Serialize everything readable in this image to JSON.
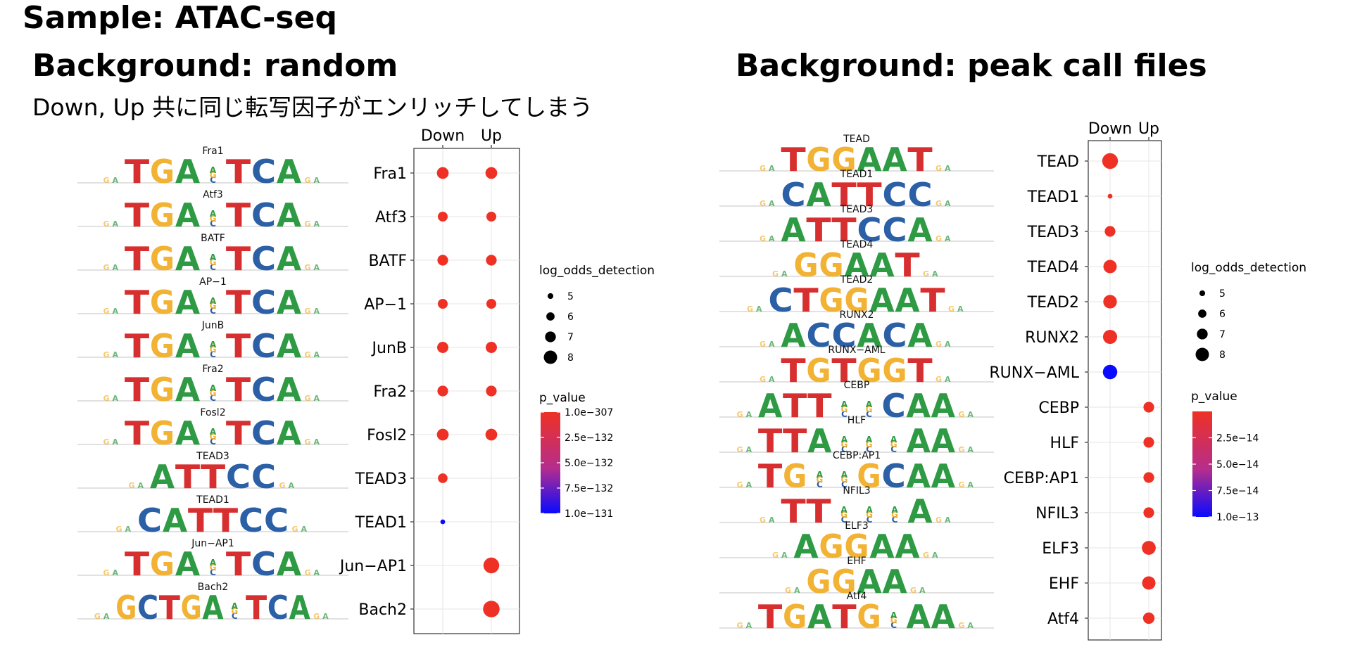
{
  "page": {
    "sample_title": "Sample: ATAC-seq",
    "left_background_title": "Background: random",
    "left_note": "Down, Up 共に同じ転写因子がエンリッチしてしまう",
    "right_background_title": "Background: peak call files"
  },
  "chart_data": [
    {
      "type": "scatter",
      "title": "",
      "x_categories": [
        "Down",
        "Up"
      ],
      "y_categories": [
        "Fra1",
        "Atf3",
        "BATF",
        "AP−1",
        "JunB",
        "Fra2",
        "Fosl2",
        "TEAD3",
        "TEAD1",
        "Jun−AP1",
        "Bach2"
      ],
      "grid": true,
      "legend_position": "right",
      "size_legend": {
        "title": "log_odds_detection",
        "values": [
          5,
          6,
          7,
          8
        ],
        "labels": [
          "5",
          "6",
          "7",
          "8"
        ]
      },
      "color_legend": {
        "title": "p_value",
        "labels": [
          "1.0e−307",
          "2.5e−132",
          "5.0e−132",
          "7.5e−132",
          "1.0e−131"
        ],
        "low_color": "#ee3124",
        "high_color": "#0a0aff"
      },
      "points": [
        {
          "motif": "Fra1",
          "group": "Down",
          "size": 7.0,
          "color_frac": 0
        },
        {
          "motif": "Fra1",
          "group": "Up",
          "size": 7.0,
          "color_frac": 0
        },
        {
          "motif": "Atf3",
          "group": "Down",
          "size": 6.3,
          "color_frac": 0
        },
        {
          "motif": "Atf3",
          "group": "Up",
          "size": 6.3,
          "color_frac": 0
        },
        {
          "motif": "BATF",
          "group": "Down",
          "size": 6.6,
          "color_frac": 0
        },
        {
          "motif": "BATF",
          "group": "Up",
          "size": 6.6,
          "color_frac": 0
        },
        {
          "motif": "AP−1",
          "group": "Down",
          "size": 6.3,
          "color_frac": 0
        },
        {
          "motif": "AP−1",
          "group": "Up",
          "size": 6.3,
          "color_frac": 0
        },
        {
          "motif": "JunB",
          "group": "Down",
          "size": 6.8,
          "color_frac": 0
        },
        {
          "motif": "JunB",
          "group": "Up",
          "size": 6.8,
          "color_frac": 0
        },
        {
          "motif": "Fra2",
          "group": "Down",
          "size": 6.6,
          "color_frac": 0
        },
        {
          "motif": "Fra2",
          "group": "Up",
          "size": 6.6,
          "color_frac": 0
        },
        {
          "motif": "Fosl2",
          "group": "Down",
          "size": 7.0,
          "color_frac": 0
        },
        {
          "motif": "Fosl2",
          "group": "Up",
          "size": 7.0,
          "color_frac": 0
        },
        {
          "motif": "TEAD3",
          "group": "Down",
          "size": 6.2,
          "color_frac": 0
        },
        {
          "motif": "TEAD1",
          "group": "Down",
          "size": 4.4,
          "color_frac": 1
        },
        {
          "motif": "Jun−AP1",
          "group": "Up",
          "size": 8.5,
          "color_frac": 0
        },
        {
          "motif": "Bach2",
          "group": "Up",
          "size": 8.8,
          "color_frac": 0
        }
      ]
    },
    {
      "type": "scatter",
      "title": "",
      "x_categories": [
        "Down",
        "Up"
      ],
      "y_categories": [
        "TEAD",
        "TEAD1",
        "TEAD3",
        "TEAD4",
        "TEAD2",
        "RUNX2",
        "RUNX−AML",
        "CEBP",
        "HLF",
        "CEBP:AP1",
        "NFIL3",
        "ELF3",
        "EHF",
        "Atf4"
      ],
      "grid": true,
      "legend_position": "right",
      "size_legend": {
        "title": "log_odds_detection",
        "values": [
          5,
          6,
          7,
          8
        ],
        "labels": [
          "5",
          "6",
          "7",
          "8"
        ]
      },
      "color_legend": {
        "title": "p_value",
        "labels": [
          "2.5e−14",
          "5.0e−14",
          "7.5e−14",
          "1.0e−13"
        ],
        "low_color": "#ee3124",
        "high_color": "#0a0aff"
      },
      "points": [
        {
          "motif": "TEAD",
          "group": "Down",
          "size": 8.5,
          "color_frac": 0
        },
        {
          "motif": "TEAD1",
          "group": "Down",
          "size": 4.4,
          "color_frac": 0
        },
        {
          "motif": "TEAD3",
          "group": "Down",
          "size": 6.6,
          "color_frac": 0
        },
        {
          "motif": "TEAD4",
          "group": "Down",
          "size": 7.6,
          "color_frac": 0
        },
        {
          "motif": "TEAD2",
          "group": "Down",
          "size": 7.7,
          "color_frac": 0
        },
        {
          "motif": "RUNX2",
          "group": "Down",
          "size": 7.9,
          "color_frac": 0
        },
        {
          "motif": "RUNX−AML",
          "group": "Down",
          "size": 8.0,
          "color_frac": 1
        },
        {
          "motif": "CEBP",
          "group": "Up",
          "size": 6.6,
          "color_frac": 0
        },
        {
          "motif": "HLF",
          "group": "Up",
          "size": 6.6,
          "color_frac": 0
        },
        {
          "motif": "CEBP:AP1",
          "group": "Up",
          "size": 6.6,
          "color_frac": 0
        },
        {
          "motif": "NFIL3",
          "group": "Up",
          "size": 6.6,
          "color_frac": 0
        },
        {
          "motif": "ELF3",
          "group": "Up",
          "size": 7.8,
          "color_frac": 0
        },
        {
          "motif": "EHF",
          "group": "Up",
          "size": 7.6,
          "color_frac": 0
        },
        {
          "motif": "Atf4",
          "group": "Up",
          "size": 6.9,
          "color_frac": 0
        }
      ]
    }
  ],
  "motif_logos": [
    {
      "panel": "left",
      "items": [
        {
          "name": "Fra1",
          "seq": "TGA.TCA"
        },
        {
          "name": "Atf3",
          "seq": "TGA.TCA"
        },
        {
          "name": "BATF",
          "seq": "TGA.TCA"
        },
        {
          "name": "AP−1",
          "seq": "TGA.TCA"
        },
        {
          "name": "JunB",
          "seq": "TGA.TCA"
        },
        {
          "name": "Fra2",
          "seq": "TGA.TCA"
        },
        {
          "name": "Fosl2",
          "seq": "TGA.TCA"
        },
        {
          "name": "TEAD3",
          "seq": "ATTCC"
        },
        {
          "name": "TEAD1",
          "seq": "CATTCC"
        },
        {
          "name": "Jun−AP1",
          "seq": "TGA.TCA"
        },
        {
          "name": "Bach2",
          "seq": "GCTGA.TCA"
        }
      ]
    },
    {
      "panel": "right",
      "items": [
        {
          "name": "TEAD",
          "seq": "TGGAAT"
        },
        {
          "name": "TEAD1",
          "seq": "CATTCC"
        },
        {
          "name": "TEAD3",
          "seq": "ATTCCA"
        },
        {
          "name": "TEAD4",
          "seq": "GGAAT"
        },
        {
          "name": "TEAD2",
          "seq": "CTGGAAT"
        },
        {
          "name": "RUNX2",
          "seq": "ACCACA"
        },
        {
          "name": "RUNX−AML",
          "seq": "TGTGGT"
        },
        {
          "name": "CEBP",
          "seq": "ATT..CAA"
        },
        {
          "name": "HLF",
          "seq": "TTA...AA"
        },
        {
          "name": "CEBP:AP1",
          "seq": "TG..GCAA"
        },
        {
          "name": "NFIL3",
          "seq": "TT...A"
        },
        {
          "name": "ELF3",
          "seq": "AGGAA"
        },
        {
          "name": "EHF",
          "seq": "GGAA"
        },
        {
          "name": "Atf4",
          "seq": "TGATG.AA"
        }
      ]
    }
  ]
}
